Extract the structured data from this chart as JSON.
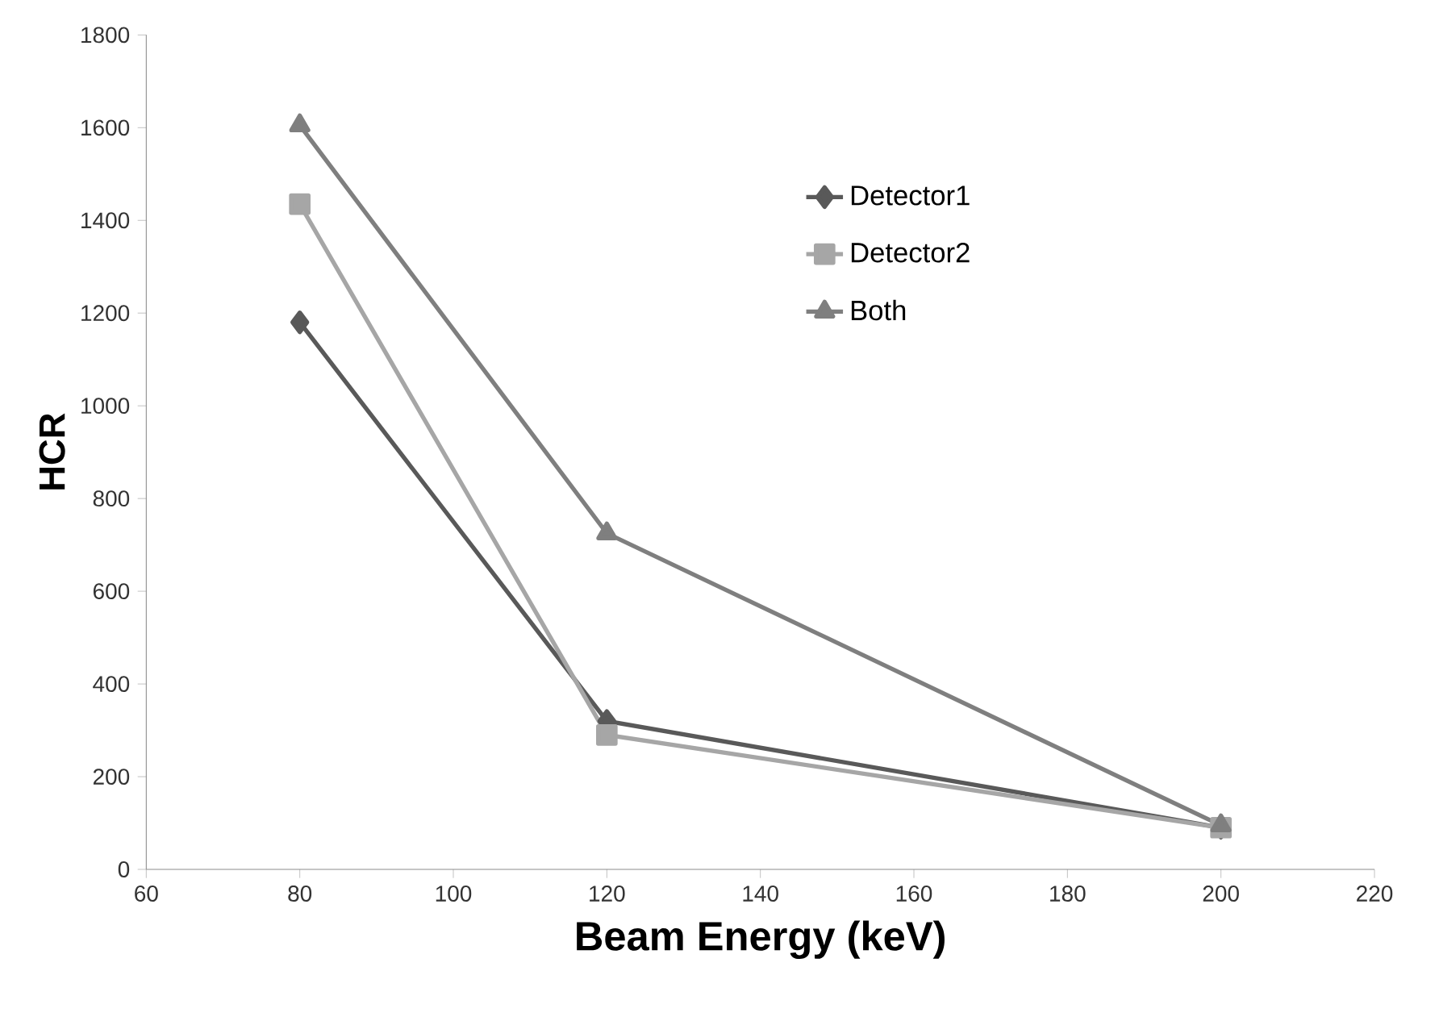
{
  "chart_data": {
    "type": "line",
    "xlabel": "Beam Energy (keV)",
    "ylabel": "HCR",
    "x": [
      80,
      120,
      200
    ],
    "series": [
      {
        "name": "Detector1",
        "color": "#595959",
        "marker": "diamond",
        "values": [
          1180,
          320,
          90
        ]
      },
      {
        "name": "Detector2",
        "color": "#a6a6a6",
        "marker": "square",
        "values": [
          1435,
          290,
          90
        ]
      },
      {
        "name": "Both",
        "color": "#7f7f7f",
        "marker": "triangle",
        "values": [
          1605,
          725,
          95
        ]
      }
    ],
    "xlim": [
      60,
      220
    ],
    "xticks": [
      60,
      80,
      100,
      120,
      140,
      160,
      180,
      200,
      220
    ],
    "ylim": [
      0,
      1800
    ],
    "yticks": [
      0,
      200,
      400,
      600,
      800,
      1000,
      1200,
      1400,
      1600,
      1800
    ],
    "grid": false,
    "legend": "top right",
    "line_style": "solid"
  }
}
